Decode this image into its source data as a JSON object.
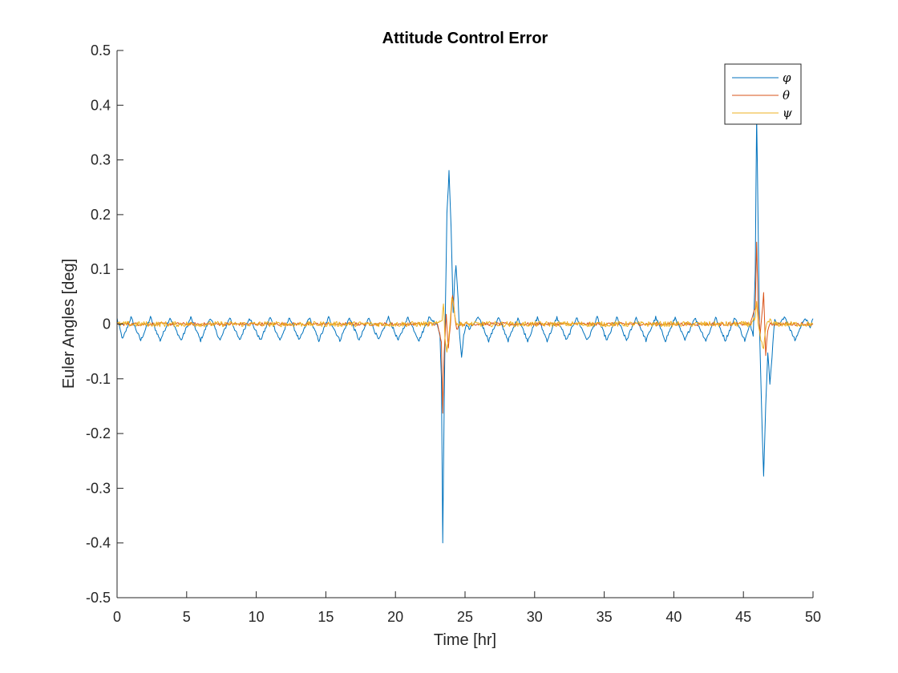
{
  "chart_data": {
    "type": "line",
    "title": "Attitude Control Error",
    "xlabel": "Time [hr]",
    "ylabel": "Euler Angles [deg]",
    "xlim": [
      0,
      50
    ],
    "ylim": [
      -0.5,
      0.5
    ],
    "xticks": [
      0,
      5,
      10,
      15,
      20,
      25,
      30,
      35,
      40,
      45,
      50
    ],
    "xtick_labels": [
      "0",
      "5",
      "10",
      "15",
      "20",
      "25",
      "30",
      "35",
      "40",
      "45",
      "50"
    ],
    "yticks": [
      -0.5,
      -0.4,
      -0.3,
      -0.2,
      -0.1,
      0,
      0.1,
      0.2,
      0.3,
      0.4,
      0.5
    ],
    "ytick_labels": [
      "-0.5",
      "-0.4",
      "-0.3",
      "-0.2",
      "-0.1",
      "0",
      "0.1",
      "0.2",
      "0.3",
      "0.4",
      "0.5"
    ],
    "grid": false,
    "legend_position": "top-right",
    "series": [
      {
        "name": "φ",
        "color": "#0072BD",
        "points": [
          [
            0,
            0.01
          ],
          [
            0.4,
            -0.028
          ],
          [
            1.0,
            0.012
          ],
          [
            1.7,
            -0.03
          ],
          [
            2.4,
            0.012
          ],
          [
            3.1,
            -0.03
          ],
          [
            3.8,
            0.012
          ],
          [
            4.6,
            -0.03
          ],
          [
            5.3,
            0.012
          ],
          [
            6.0,
            -0.03
          ],
          [
            6.7,
            0.012
          ],
          [
            7.4,
            -0.03
          ],
          [
            8.1,
            0.012
          ],
          [
            8.8,
            -0.03
          ],
          [
            9.5,
            0.012
          ],
          [
            10.3,
            -0.03
          ],
          [
            11.0,
            0.012
          ],
          [
            11.7,
            -0.03
          ],
          [
            12.4,
            0.012
          ],
          [
            13.1,
            -0.03
          ],
          [
            13.8,
            0.012
          ],
          [
            14.5,
            -0.03
          ],
          [
            15.2,
            0.012
          ],
          [
            16.0,
            -0.03
          ],
          [
            16.7,
            0.012
          ],
          [
            17.4,
            -0.03
          ],
          [
            18.1,
            0.012
          ],
          [
            18.8,
            -0.03
          ],
          [
            19.5,
            0.012
          ],
          [
            20.2,
            -0.03
          ],
          [
            20.9,
            0.012
          ],
          [
            21.7,
            -0.03
          ],
          [
            22.4,
            0.012
          ],
          [
            23.0,
            0.0
          ],
          [
            23.2,
            -0.02
          ],
          [
            23.3,
            -0.1
          ],
          [
            23.4,
            -0.4
          ],
          [
            23.5,
            -0.15
          ],
          [
            23.6,
            0.05
          ],
          [
            23.7,
            0.2
          ],
          [
            23.85,
            0.278
          ],
          [
            24.0,
            0.18
          ],
          [
            24.15,
            0.02
          ],
          [
            24.25,
            0.08
          ],
          [
            24.35,
            0.106
          ],
          [
            24.5,
            0.05
          ],
          [
            24.6,
            -0.02
          ],
          [
            24.75,
            -0.063
          ],
          [
            24.9,
            -0.02
          ],
          [
            25.1,
            0.0
          ],
          [
            25.3,
            -0.01
          ],
          [
            26.0,
            0.012
          ],
          [
            26.7,
            -0.03
          ],
          [
            27.4,
            0.012
          ],
          [
            28.1,
            -0.03
          ],
          [
            28.8,
            0.012
          ],
          [
            29.5,
            -0.03
          ],
          [
            30.2,
            0.012
          ],
          [
            30.9,
            -0.03
          ],
          [
            31.6,
            0.012
          ],
          [
            32.3,
            -0.03
          ],
          [
            33.0,
            0.012
          ],
          [
            33.8,
            -0.03
          ],
          [
            34.5,
            0.012
          ],
          [
            35.2,
            -0.03
          ],
          [
            35.9,
            0.012
          ],
          [
            36.6,
            -0.03
          ],
          [
            37.3,
            0.012
          ],
          [
            38.0,
            -0.03
          ],
          [
            38.7,
            0.012
          ],
          [
            39.4,
            -0.03
          ],
          [
            40.1,
            0.012
          ],
          [
            40.8,
            -0.03
          ],
          [
            41.5,
            0.012
          ],
          [
            42.3,
            -0.03
          ],
          [
            43.0,
            0.012
          ],
          [
            43.7,
            -0.03
          ],
          [
            44.4,
            0.012
          ],
          [
            45.1,
            -0.03
          ],
          [
            45.5,
            0.0
          ],
          [
            45.7,
            -0.02
          ],
          [
            45.85,
            0.1
          ],
          [
            45.95,
            0.38
          ],
          [
            46.05,
            0.2
          ],
          [
            46.15,
            0.0
          ],
          [
            46.3,
            -0.15
          ],
          [
            46.45,
            -0.28
          ],
          [
            46.6,
            -0.15
          ],
          [
            46.75,
            -0.05
          ],
          [
            46.9,
            -0.108
          ],
          [
            47.05,
            -0.06
          ],
          [
            47.25,
            0.01
          ],
          [
            47.5,
            0.0
          ],
          [
            48.0,
            0.012
          ],
          [
            48.7,
            -0.03
          ],
          [
            49.4,
            0.012
          ],
          [
            49.8,
            -0.005
          ],
          [
            50,
            0.01
          ]
        ]
      },
      {
        "name": "θ",
        "color": "#D95319",
        "points": [
          [
            0,
            0.0
          ],
          [
            5,
            0.0
          ],
          [
            10,
            0.0
          ],
          [
            15,
            0.0
          ],
          [
            20,
            0.0
          ],
          [
            23.0,
            0.0
          ],
          [
            23.3,
            -0.03
          ],
          [
            23.4,
            -0.16
          ],
          [
            23.5,
            -0.05
          ],
          [
            23.65,
            0.02
          ],
          [
            23.8,
            -0.045
          ],
          [
            23.95,
            0.0
          ],
          [
            24.1,
            0.055
          ],
          [
            24.25,
            0.02
          ],
          [
            24.4,
            -0.01
          ],
          [
            24.6,
            0.0
          ],
          [
            30,
            0.0
          ],
          [
            35,
            0.0
          ],
          [
            40,
            0.0
          ],
          [
            45.5,
            0.0
          ],
          [
            45.85,
            0.03
          ],
          [
            45.95,
            0.152
          ],
          [
            46.05,
            0.03
          ],
          [
            46.2,
            -0.02
          ],
          [
            46.45,
            0.055
          ],
          [
            46.6,
            -0.055
          ],
          [
            46.75,
            -0.01
          ],
          [
            46.95,
            0.0
          ],
          [
            50,
            0.0
          ]
        ]
      },
      {
        "name": "ψ",
        "color": "#EDB120",
        "points": [
          [
            0,
            0.0
          ],
          [
            5,
            0.0
          ],
          [
            10,
            0.0
          ],
          [
            15,
            0.0
          ],
          [
            20,
            0.0
          ],
          [
            23.0,
            0.0
          ],
          [
            23.35,
            0.01
          ],
          [
            23.45,
            0.038
          ],
          [
            23.55,
            -0.02
          ],
          [
            23.7,
            -0.05
          ],
          [
            23.85,
            -0.02
          ],
          [
            24.05,
            0.048
          ],
          [
            24.2,
            0.03
          ],
          [
            24.4,
            0.0
          ],
          [
            25.0,
            0.0
          ],
          [
            30,
            0.0
          ],
          [
            35,
            0.0
          ],
          [
            40,
            0.0
          ],
          [
            45.5,
            0.0
          ],
          [
            45.85,
            0.01
          ],
          [
            45.95,
            0.037
          ],
          [
            46.05,
            0.0
          ],
          [
            46.25,
            -0.03
          ],
          [
            46.45,
            -0.045
          ],
          [
            46.65,
            0.0
          ],
          [
            46.85,
            0.008
          ],
          [
            47.1,
            0.0
          ],
          [
            50,
            0.0
          ]
        ]
      }
    ]
  }
}
